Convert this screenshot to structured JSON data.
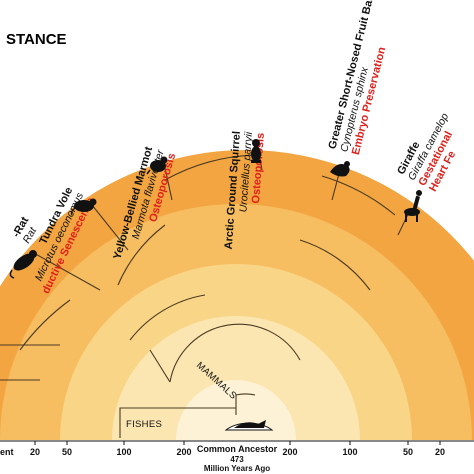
{
  "title": "STANCE",
  "clades": {
    "mammals": "MAMMALS",
    "fishes": "FISHES"
  },
  "root": {
    "name": "Common Ancestor",
    "age": "473",
    "unit": "Million Years Ago"
  },
  "axis": {
    "left_end": "ent",
    "ticks": [
      "20",
      "50",
      "100",
      "200",
      "200",
      "100",
      "50",
      "20"
    ]
  },
  "species": [
    {
      "id": "mole-rat",
      "name": "-Rat",
      "latin": "Rat",
      "trait": ""
    },
    {
      "id": "tundra-vole",
      "name": "Tundra Vole",
      "latin": "Microtus oeconomus",
      "trait": "ductive Senescence"
    },
    {
      "id": "yellow-bellied-marmot",
      "name": "Yellow-Bellied Marmot",
      "latin": "Marmota flaviventer",
      "trait": "Osteoporosis"
    },
    {
      "id": "arctic-ground-squirrel",
      "name": "Arctic Ground Squirrel",
      "latin": "Urocitellus parryii",
      "trait": "Osteoporosis"
    },
    {
      "id": "fruit-bat",
      "name": "Greater Short-Nosed Fruit Bat",
      "latin": "Cynopterus sphinx",
      "trait": "Embryo Preservation"
    },
    {
      "id": "giraffe",
      "name": "Giraffe",
      "latin": "Giraffa camelop",
      "trait": "Gestational",
      "trait2": "Heart Fe"
    }
  ],
  "colors": {
    "ring_outer": "#f2a541",
    "ring_2": "#f6bd61",
    "ring_3": "#f9d587",
    "ring_4": "#fbe6b1",
    "ring_inner": "#fdf2d6",
    "trait": "#e0201b",
    "branch": "#4a3a22"
  }
}
